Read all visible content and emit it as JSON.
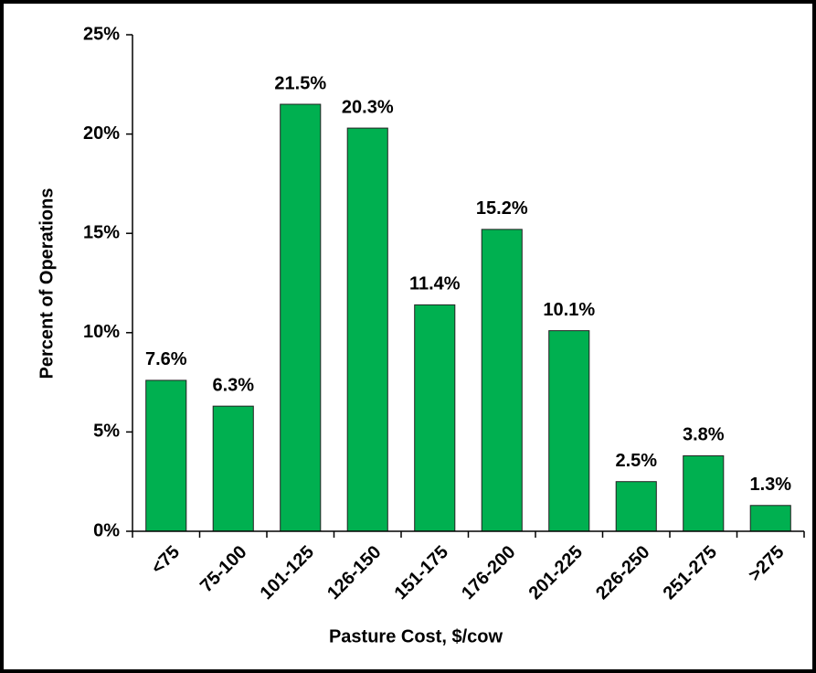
{
  "chart_data": {
    "type": "bar",
    "x_label": "Pasture Cost, $/cow",
    "y_label": "Percent of Operations",
    "categories": [
      "<75",
      "75-100",
      "101-125",
      "126-150",
      "151-175",
      "176-200",
      "201-225",
      "226-250",
      "251-275",
      ">275"
    ],
    "values": [
      7.6,
      6.3,
      21.5,
      20.3,
      11.4,
      15.2,
      10.1,
      2.5,
      3.8,
      1.3
    ],
    "value_labels": [
      "7.6%",
      "6.3%",
      "21.5%",
      "20.3%",
      "11.4%",
      "15.2%",
      "10.1%",
      "2.5%",
      "3.8%",
      "1.3%"
    ],
    "color": "#00b050",
    "ylim": [
      0,
      25
    ],
    "yticks": [
      {
        "value": 0,
        "label": "0%"
      },
      {
        "value": 5,
        "label": "5%"
      },
      {
        "value": 10,
        "label": "10%"
      },
      {
        "value": 15,
        "label": "15%"
      },
      {
        "value": 20,
        "label": "20%"
      },
      {
        "value": 25,
        "label": "25%"
      }
    ],
    "grid": false
  }
}
